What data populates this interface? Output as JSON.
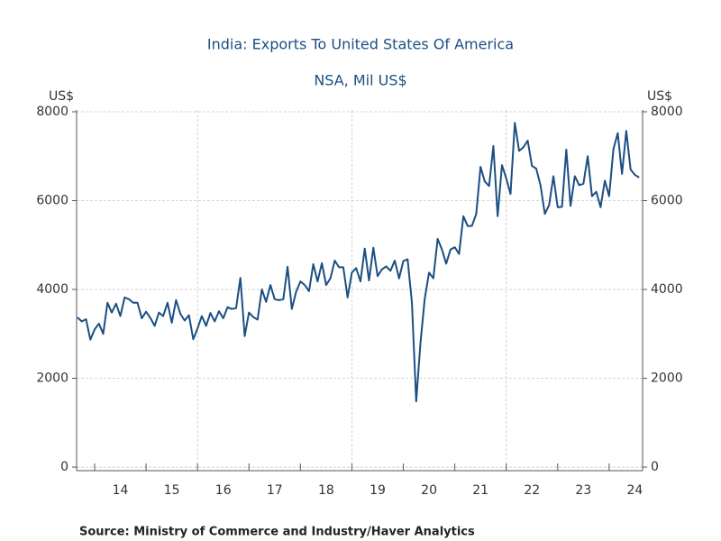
{
  "chart_data": {
    "type": "line",
    "title": "India: Exports To United States Of America",
    "subtitle": "NSA, Mil US$",
    "y_label": "US$",
    "y2_label": "US$",
    "source": "Source:  Ministry of Commerce and Industry/Haver Analytics",
    "color": "#1b4f82",
    "grid": true,
    "xlim": [
      13.65,
      24.65
    ],
    "xticks": [
      14,
      15,
      16,
      17,
      18,
      19,
      20,
      21,
      22,
      23,
      24
    ],
    "ylim": [
      -80,
      8040
    ],
    "yticks": [
      0,
      2000,
      4000,
      6000,
      8000
    ],
    "x": [
      13.667,
      13.75,
      13.833,
      13.917,
      14,
      14.083,
      14.167,
      14.25,
      14.333,
      14.417,
      14.5,
      14.583,
      14.667,
      14.75,
      14.833,
      14.917,
      15,
      15.083,
      15.167,
      15.25,
      15.333,
      15.417,
      15.5,
      15.583,
      15.667,
      15.75,
      15.833,
      15.917,
      16,
      16.083,
      16.167,
      16.25,
      16.333,
      16.417,
      16.5,
      16.583,
      16.667,
      16.75,
      16.833,
      16.917,
      17,
      17.083,
      17.167,
      17.25,
      17.333,
      17.417,
      17.5,
      17.583,
      17.667,
      17.75,
      17.833,
      17.917,
      18,
      18.083,
      18.167,
      18.25,
      18.333,
      18.417,
      18.5,
      18.583,
      18.667,
      18.75,
      18.833,
      18.917,
      19,
      19.083,
      19.167,
      19.25,
      19.333,
      19.417,
      19.5,
      19.583,
      19.667,
      19.75,
      19.833,
      19.917,
      20,
      20.083,
      20.167,
      20.25,
      20.333,
      20.417,
      20.5,
      20.583,
      20.667,
      20.75,
      20.833,
      20.917,
      21,
      21.083,
      21.167,
      21.25,
      21.333,
      21.417,
      21.5,
      21.583,
      21.667,
      21.75,
      21.833,
      21.917,
      22,
      22.083,
      22.167,
      22.25,
      22.333,
      22.417,
      22.5,
      22.583,
      22.667,
      22.75,
      22.833,
      22.917,
      23,
      23.083,
      23.167,
      23.25,
      23.333,
      23.417,
      23.5,
      23.583,
      23.667,
      23.75,
      23.833,
      23.917,
      24,
      24.083,
      24.167,
      24.25,
      24.333,
      24.417,
      24.5,
      24.583
    ],
    "values": [
      3370,
      3280,
      3330,
      2870,
      3100,
      3230,
      3000,
      3700,
      3480,
      3680,
      3400,
      3820,
      3780,
      3700,
      3700,
      3350,
      3500,
      3360,
      3180,
      3480,
      3400,
      3700,
      3250,
      3760,
      3450,
      3300,
      3420,
      2880,
      3120,
      3400,
      3180,
      3470,
      3280,
      3510,
      3350,
      3600,
      3560,
      3580,
      4260,
      2950,
      3480,
      3380,
      3320,
      4000,
      3720,
      4100,
      3780,
      3760,
      3780,
      4510,
      3560,
      3950,
      4180,
      4100,
      3960,
      4570,
      4180,
      4590,
      4100,
      4250,
      4650,
      4500,
      4500,
      3820,
      4380,
      4480,
      4180,
      4920,
      4200,
      4940,
      4300,
      4450,
      4520,
      4420,
      4650,
      4250,
      4640,
      4680,
      3700,
      1480,
      2800,
      3800,
      4380,
      4250,
      5140,
      4900,
      4580,
      4900,
      4950,
      4800,
      5650,
      5430,
      5430,
      5700,
      6760,
      6430,
      6330,
      7230,
      5650,
      6800,
      6500,
      6150,
      7750,
      7120,
      7200,
      7350,
      6780,
      6720,
      6340,
      5700,
      5900,
      6550,
      5850,
      5860,
      7150,
      5880,
      6550,
      6350,
      6380,
      7000,
      6100,
      6200,
      5850,
      6450,
      6100,
      7160,
      7520,
      6600,
      7570,
      6700,
      6580,
      6520
    ]
  }
}
